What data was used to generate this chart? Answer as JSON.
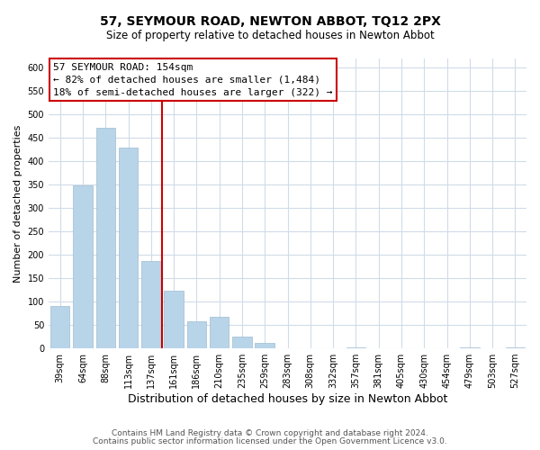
{
  "title": "57, SEYMOUR ROAD, NEWTON ABBOT, TQ12 2PX",
  "subtitle": "Size of property relative to detached houses in Newton Abbot",
  "xlabel": "Distribution of detached houses by size in Newton Abbot",
  "ylabel": "Number of detached properties",
  "bar_labels": [
    "39sqm",
    "64sqm",
    "88sqm",
    "113sqm",
    "137sqm",
    "161sqm",
    "186sqm",
    "210sqm",
    "235sqm",
    "259sqm",
    "283sqm",
    "308sqm",
    "332sqm",
    "357sqm",
    "381sqm",
    "405sqm",
    "430sqm",
    "454sqm",
    "479sqm",
    "503sqm",
    "527sqm"
  ],
  "bar_values": [
    90,
    348,
    472,
    430,
    187,
    123,
    57,
    68,
    25,
    12,
    0,
    0,
    0,
    3,
    0,
    0,
    0,
    0,
    3,
    0,
    3
  ],
  "bar_color": "#b8d4e8",
  "bar_edge_color": "#a0bcd0",
  "ylim": [
    0,
    620
  ],
  "yticks": [
    0,
    50,
    100,
    150,
    200,
    250,
    300,
    350,
    400,
    450,
    500,
    550,
    600
  ],
  "vline_x_idx": 4.5,
  "vline_color": "#cc0000",
  "annotation_title": "57 SEYMOUR ROAD: 154sqm",
  "annotation_line1": "← 82% of detached houses are smaller (1,484)",
  "annotation_line2": "18% of semi-detached houses are larger (322) →",
  "annotation_box_facecolor": "#ffffff",
  "annotation_box_edgecolor": "#cc0000",
  "footer1": "Contains HM Land Registry data © Crown copyright and database right 2024.",
  "footer2": "Contains public sector information licensed under the Open Government Licence v3.0.",
  "background_color": "#ffffff",
  "grid_color": "#d0dce8",
  "title_fontsize": 10,
  "subtitle_fontsize": 8.5,
  "ylabel_fontsize": 8,
  "xlabel_fontsize": 9,
  "tick_fontsize": 7,
  "annot_fontsize": 8,
  "footer_fontsize": 6.5
}
